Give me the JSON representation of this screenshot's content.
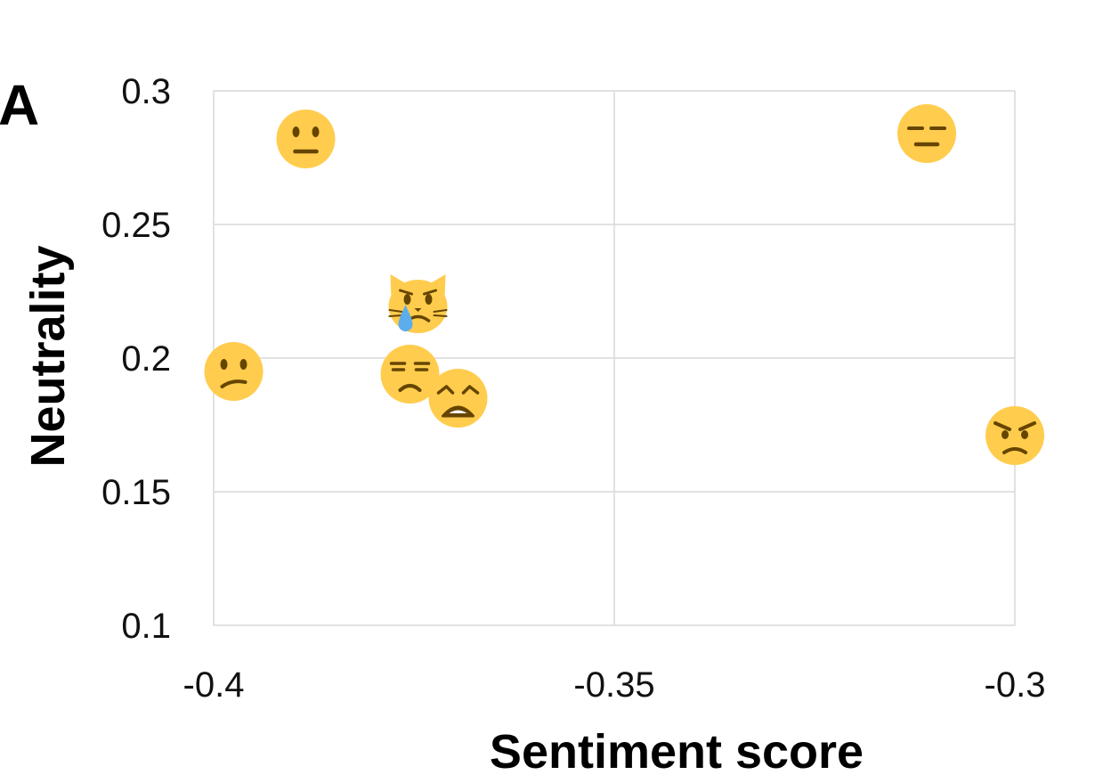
{
  "panel_label": "A",
  "colors": {
    "face": "#FFCC4D",
    "feature": "#664500",
    "tear": "#5DADEC",
    "grid": "#d9d9d9"
  },
  "chart_data": {
    "type": "scatter",
    "xlabel": "Sentiment score",
    "ylabel": "Neutrality",
    "xlim": [
      -0.4,
      -0.3
    ],
    "ylim": [
      0.1,
      0.3
    ],
    "x_ticks": [
      "-0.4",
      "-0.35",
      "-0.3"
    ],
    "y_ticks": [
      "0.3",
      "0.25",
      "0.2",
      "0.15",
      "0.1"
    ],
    "grid": true,
    "points": [
      {
        "icon": "neutral-face-icon",
        "x": -0.3885,
        "y": 0.282
      },
      {
        "icon": "expressionless-face-icon",
        "x": -0.311,
        "y": 0.284
      },
      {
        "icon": "crying-cat-face-icon",
        "x": -0.3745,
        "y": 0.22
      },
      {
        "icon": "confused-face-icon",
        "x": -0.3975,
        "y": 0.195
      },
      {
        "icon": "unamused-face-icon",
        "x": -0.3755,
        "y": 0.194
      },
      {
        "icon": "weary-face-icon",
        "x": -0.3695,
        "y": 0.185
      },
      {
        "icon": "angry-face-icon",
        "x": -0.3,
        "y": 0.171
      }
    ]
  }
}
